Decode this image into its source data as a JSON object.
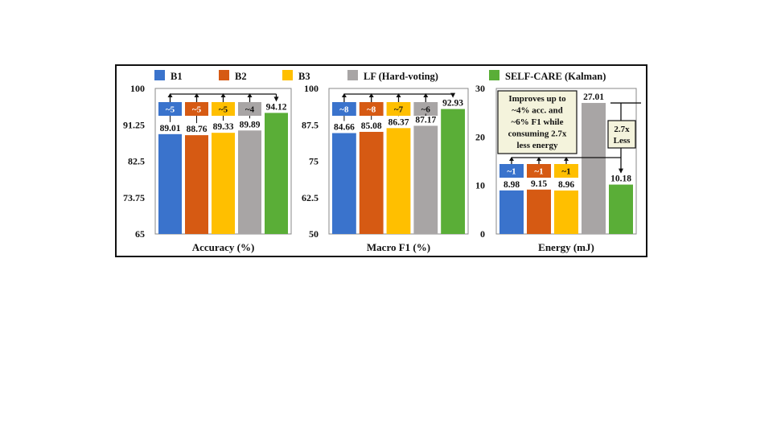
{
  "colors": {
    "B1": "#3a73cc",
    "B2": "#d65a13",
    "B3": "#ffbf00",
    "LF": "#a8a5a5",
    "SELF": "#5aae37",
    "note_bg": "#f4f3dc"
  },
  "legend": [
    {
      "label": "B1",
      "color_key": "B1"
    },
    {
      "label": "B2",
      "color_key": "B2"
    },
    {
      "label": "B3",
      "color_key": "B3"
    },
    {
      "label": "LF (Hard-voting)",
      "color_key": "LF"
    },
    {
      "label": "SELF-CARE (Kalman)",
      "color_key": "SELF"
    }
  ],
  "chart_data": [
    {
      "type": "bar",
      "xlabel": "Accuracy (%)",
      "ylim": [
        65,
        100
      ],
      "yticks": [
        "100",
        "91.25",
        "82.5",
        "73.75",
        "65"
      ],
      "categories": [
        "B1",
        "B2",
        "B3",
        "LF",
        "SELF"
      ],
      "values": [
        89.01,
        88.76,
        89.33,
        89.89,
        94.12
      ],
      "value_labels": [
        "89.01",
        "88.76",
        "89.33",
        "89.89",
        "94.12"
      ],
      "improvement_labels": [
        "~5",
        "~5",
        "~5",
        "~4"
      ]
    },
    {
      "type": "bar",
      "xlabel": "Macro F1 (%)",
      "ylim": [
        50,
        100
      ],
      "yticks": [
        "100",
        "87.5",
        "75",
        "62.5",
        "50"
      ],
      "categories": [
        "B1",
        "B2",
        "B3",
        "LF",
        "SELF"
      ],
      "values": [
        84.66,
        85.08,
        86.37,
        87.17,
        92.93
      ],
      "value_labels": [
        "84.66",
        "85.08",
        "86.37",
        "87.17",
        "92.93"
      ],
      "improvement_labels": [
        "~8",
        "~8",
        "~7",
        "~6"
      ]
    },
    {
      "type": "bar",
      "xlabel": "Energy (mJ)",
      "ylim": [
        0,
        30
      ],
      "yticks": [
        "30",
        "20",
        "10",
        "0"
      ],
      "categories": [
        "B1",
        "B2",
        "B3",
        "LF",
        "SELF"
      ],
      "values": [
        8.98,
        9.15,
        8.96,
        27.01,
        10.18
      ],
      "value_labels": [
        "8.98",
        "9.15",
        "8.96",
        "27.01",
        "10.18"
      ],
      "improvement_labels": [
        "~1",
        "~1",
        "~1"
      ],
      "annotation": [
        "Improves up to",
        "~4% acc. and",
        "~6% F1 while",
        "consuming 2.7x",
        "less energy"
      ],
      "less_note": [
        "2.7x",
        "Less"
      ]
    }
  ]
}
